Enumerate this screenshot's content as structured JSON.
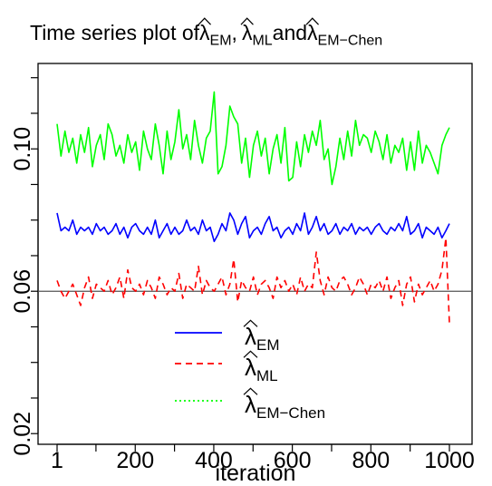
{
  "chart_data": {
    "type": "line",
    "title": {
      "prefix": "Time series plot of ",
      "parts": [
        {
          "symbol": "λ",
          "sub": "EM",
          "after": ","
        },
        {
          "symbol": "λ",
          "sub": "ML",
          "after": "and "
        },
        {
          "symbol": "λ",
          "sub": "EM−Chen",
          "after": ""
        }
      ]
    },
    "xlabel": "iteration",
    "ylabel": "",
    "xlim": [
      1,
      1000
    ],
    "ylim": [
      0.017,
      0.124
    ],
    "xticks": [
      1,
      200,
      400,
      600,
      800,
      1000
    ],
    "yticks": [
      0.02,
      0.06,
      0.1
    ],
    "ytick_labels": [
      "0.02",
      "0.06",
      "0.10"
    ],
    "reference_line": 0.06,
    "legend": {
      "placement": "bottom-center",
      "entries": [
        {
          "symbol": "λ",
          "sub": "EM",
          "color": "#0000ff",
          "dash": "solid"
        },
        {
          "symbol": "λ",
          "sub": "ML",
          "color": "#ff0000",
          "dash": "dashed"
        },
        {
          "symbol": "λ",
          "sub": "EM−Chen",
          "color": "#00ff00",
          "dash": "dotted"
        }
      ]
    },
    "series": [
      {
        "color": "#00ff00",
        "dash": "solid",
        "x": [
          1,
          11,
          21,
          31,
          41,
          51,
          61,
          71,
          81,
          91,
          101,
          111,
          121,
          131,
          141,
          151,
          161,
          171,
          181,
          191,
          201,
          211,
          221,
          231,
          241,
          251,
          261,
          271,
          281,
          291,
          301,
          311,
          321,
          331,
          341,
          351,
          361,
          371,
          381,
          391,
          401,
          411,
          421,
          431,
          441,
          451,
          461,
          471,
          481,
          491,
          501,
          511,
          521,
          531,
          541,
          551,
          561,
          571,
          581,
          591,
          601,
          611,
          621,
          631,
          641,
          651,
          661,
          671,
          681,
          691,
          701,
          711,
          721,
          731,
          741,
          751,
          761,
          771,
          781,
          791,
          801,
          811,
          821,
          831,
          841,
          851,
          861,
          871,
          881,
          891,
          901,
          911,
          921,
          931,
          941,
          951,
          961,
          971,
          981,
          991,
          1000
        ],
        "values": [
          0.107,
          0.098,
          0.105,
          0.099,
          0.103,
          0.096,
          0.104,
          0.099,
          0.106,
          0.095,
          0.101,
          0.104,
          0.097,
          0.107,
          0.104,
          0.098,
          0.101,
          0.096,
          0.104,
          0.099,
          0.102,
          0.094,
          0.105,
          0.1,
          0.097,
          0.107,
          0.101,
          0.093,
          0.105,
          0.097,
          0.102,
          0.111,
          0.1,
          0.104,
          0.097,
          0.108,
          0.101,
          0.096,
          0.103,
          0.105,
          0.116,
          0.093,
          0.095,
          0.101,
          0.112,
          0.109,
          0.107,
          0.096,
          0.103,
          0.092,
          0.101,
          0.105,
          0.098,
          0.103,
          0.093,
          0.1,
          0.104,
          0.096,
          0.106,
          0.091,
          0.092,
          0.102,
          0.095,
          0.104,
          0.099,
          0.105,
          0.101,
          0.108,
          0.097,
          0.1,
          0.09,
          0.095,
          0.103,
          0.097,
          0.105,
          0.098,
          0.108,
          0.101,
          0.104,
          0.103,
          0.099,
          0.105,
          0.102,
          0.097,
          0.104,
          0.096,
          0.101,
          0.099,
          0.103,
          0.094,
          0.102,
          0.094,
          0.105,
          0.096,
          0.101,
          0.099,
          0.096,
          0.093,
          0.101,
          0.104,
          0.106
        ]
      },
      {
        "color": "#0000ff",
        "dash": "solid",
        "x": [
          1,
          11,
          21,
          31,
          41,
          51,
          61,
          71,
          81,
          91,
          101,
          111,
          121,
          131,
          141,
          151,
          161,
          171,
          181,
          191,
          201,
          211,
          221,
          231,
          241,
          251,
          261,
          271,
          281,
          291,
          301,
          311,
          321,
          331,
          341,
          351,
          361,
          371,
          381,
          391,
          401,
          411,
          421,
          431,
          441,
          451,
          461,
          471,
          481,
          491,
          501,
          511,
          521,
          531,
          541,
          551,
          561,
          571,
          581,
          591,
          601,
          611,
          621,
          631,
          641,
          651,
          661,
          671,
          681,
          691,
          701,
          711,
          721,
          731,
          741,
          751,
          761,
          771,
          781,
          791,
          801,
          811,
          821,
          831,
          841,
          851,
          861,
          871,
          881,
          891,
          901,
          911,
          921,
          931,
          941,
          951,
          961,
          971,
          981,
          991,
          1000
        ],
        "values": [
          0.082,
          0.077,
          0.078,
          0.077,
          0.08,
          0.076,
          0.078,
          0.077,
          0.078,
          0.076,
          0.079,
          0.077,
          0.078,
          0.076,
          0.077,
          0.079,
          0.076,
          0.078,
          0.075,
          0.078,
          0.079,
          0.077,
          0.076,
          0.078,
          0.076,
          0.08,
          0.075,
          0.077,
          0.079,
          0.076,
          0.078,
          0.076,
          0.077,
          0.08,
          0.077,
          0.078,
          0.076,
          0.08,
          0.077,
          0.078,
          0.074,
          0.076,
          0.079,
          0.077,
          0.082,
          0.08,
          0.076,
          0.079,
          0.081,
          0.075,
          0.077,
          0.078,
          0.076,
          0.079,
          0.081,
          0.077,
          0.078,
          0.075,
          0.077,
          0.078,
          0.076,
          0.079,
          0.077,
          0.082,
          0.076,
          0.078,
          0.081,
          0.077,
          0.079,
          0.076,
          0.077,
          0.079,
          0.076,
          0.078,
          0.077,
          0.079,
          0.076,
          0.078,
          0.077,
          0.078,
          0.076,
          0.078,
          0.079,
          0.077,
          0.076,
          0.078,
          0.077,
          0.079,
          0.077,
          0.081,
          0.076,
          0.077,
          0.079,
          0.075,
          0.078,
          0.077,
          0.076,
          0.078,
          0.075,
          0.077,
          0.079
        ]
      },
      {
        "color": "#ff0000",
        "dash": "dashed",
        "x": [
          1,
          11,
          21,
          31,
          41,
          51,
          61,
          71,
          81,
          91,
          101,
          111,
          121,
          131,
          141,
          151,
          161,
          171,
          181,
          191,
          201,
          211,
          221,
          231,
          241,
          251,
          261,
          271,
          281,
          291,
          301,
          311,
          321,
          331,
          341,
          351,
          361,
          371,
          381,
          391,
          401,
          411,
          421,
          431,
          441,
          451,
          461,
          471,
          481,
          491,
          501,
          511,
          521,
          531,
          541,
          551,
          561,
          571,
          581,
          591,
          601,
          611,
          621,
          631,
          641,
          651,
          661,
          671,
          681,
          691,
          701,
          711,
          721,
          731,
          741,
          751,
          761,
          771,
          781,
          791,
          801,
          811,
          821,
          831,
          841,
          851,
          861,
          871,
          881,
          891,
          901,
          911,
          921,
          931,
          941,
          951,
          961,
          971,
          981,
          991,
          1000
        ],
        "values": [
          0.063,
          0.06,
          0.058,
          0.06,
          0.062,
          0.059,
          0.056,
          0.061,
          0.064,
          0.058,
          0.062,
          0.061,
          0.06,
          0.063,
          0.059,
          0.061,
          0.064,
          0.058,
          0.066,
          0.061,
          0.06,
          0.062,
          0.059,
          0.063,
          0.061,
          0.058,
          0.064,
          0.062,
          0.059,
          0.061,
          0.06,
          0.065,
          0.058,
          0.062,
          0.061,
          0.06,
          0.067,
          0.059,
          0.063,
          0.061,
          0.06,
          0.062,
          0.064,
          0.059,
          0.062,
          0.069,
          0.057,
          0.063,
          0.061,
          0.06,
          0.064,
          0.059,
          0.062,
          0.063,
          0.061,
          0.058,
          0.064,
          0.061,
          0.063,
          0.06,
          0.062,
          0.059,
          0.064,
          0.06,
          0.062,
          0.061,
          0.071,
          0.063,
          0.059,
          0.064,
          0.061,
          0.06,
          0.063,
          0.064,
          0.062,
          0.059,
          0.061,
          0.064,
          0.062,
          0.059,
          0.062,
          0.061,
          0.063,
          0.06,
          0.064,
          0.058,
          0.061,
          0.063,
          0.056,
          0.062,
          0.064,
          0.057,
          0.062,
          0.059,
          0.061,
          0.063,
          0.06,
          0.062,
          0.066,
          0.075,
          0.051
        ]
      }
    ]
  }
}
